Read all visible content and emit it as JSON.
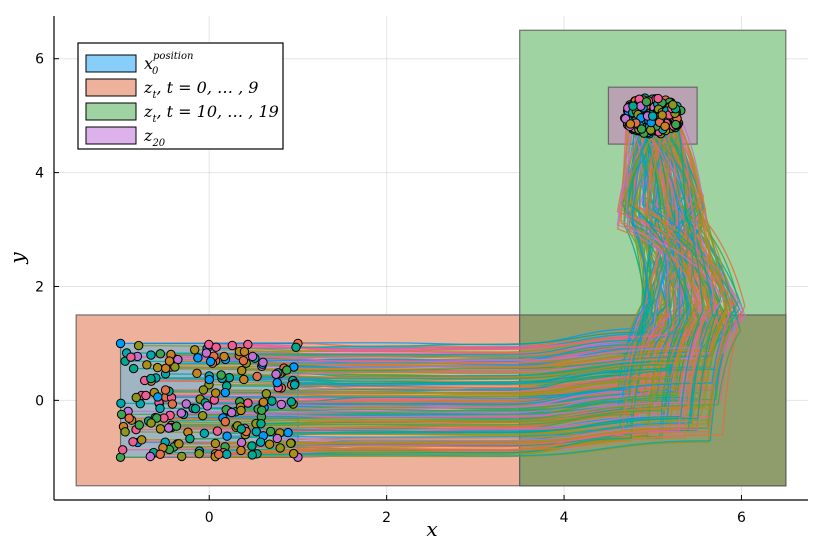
{
  "chart_data": {
    "type": "line",
    "xlabel": "x",
    "ylabel": "y",
    "xlim": [
      -1.75,
      6.75
    ],
    "ylim": [
      -1.75,
      6.75
    ],
    "x_ticks": [
      0,
      2,
      4,
      6
    ],
    "y_ticks": [
      0,
      2,
      4,
      6
    ],
    "x_tick_labels": [
      "0",
      "2",
      "4",
      "6"
    ],
    "y_tick_labels": [
      "0",
      "2",
      "4",
      "6"
    ],
    "grid": true,
    "legend_position": "top-left",
    "legend": [
      {
        "key": "x0",
        "main": "x",
        "sub": "0",
        "sup": "position",
        "color": "#87cefa"
      },
      {
        "key": "z_early",
        "main": "z",
        "sub": "t",
        "rest": ", t = 0, … , 9",
        "color": "#eeb19b"
      },
      {
        "key": "z_late",
        "main": "z",
        "sub": "t",
        "rest": ", t = 10, … , 19",
        "color": "#a0d3a2"
      },
      {
        "key": "z20",
        "main": "z",
        "sub": "20",
        "color": "#dcb1ec"
      }
    ],
    "regions": [
      {
        "name": "z_early",
        "x": [
          -1.5,
          6.5
        ],
        "y": [
          -1.5,
          1.5
        ],
        "color": "#eeb19b"
      },
      {
        "name": "z_late",
        "x": [
          3.5,
          6.5
        ],
        "y": [
          -1.5,
          6.5
        ],
        "color": "#a0d3a2"
      },
      {
        "name": "x0",
        "x": [
          -1.0,
          1.0
        ],
        "y": [
          -1.0,
          1.0
        ],
        "color": "#9fb5c4"
      },
      {
        "name": "z20",
        "x": [
          4.5,
          5.5
        ],
        "y": [
          4.5,
          5.5
        ],
        "color": "#b9a3b3"
      }
    ],
    "overlap_color": "#8f9c6c",
    "palette": [
      "#009af9",
      "#e26f46",
      "#3da44d",
      "#c271d2",
      "#ac8e18",
      "#00a9ad",
      "#ed5e93",
      "#c68225",
      "#00a98d",
      "#8e971d"
    ],
    "n_trajectories": 200
  }
}
